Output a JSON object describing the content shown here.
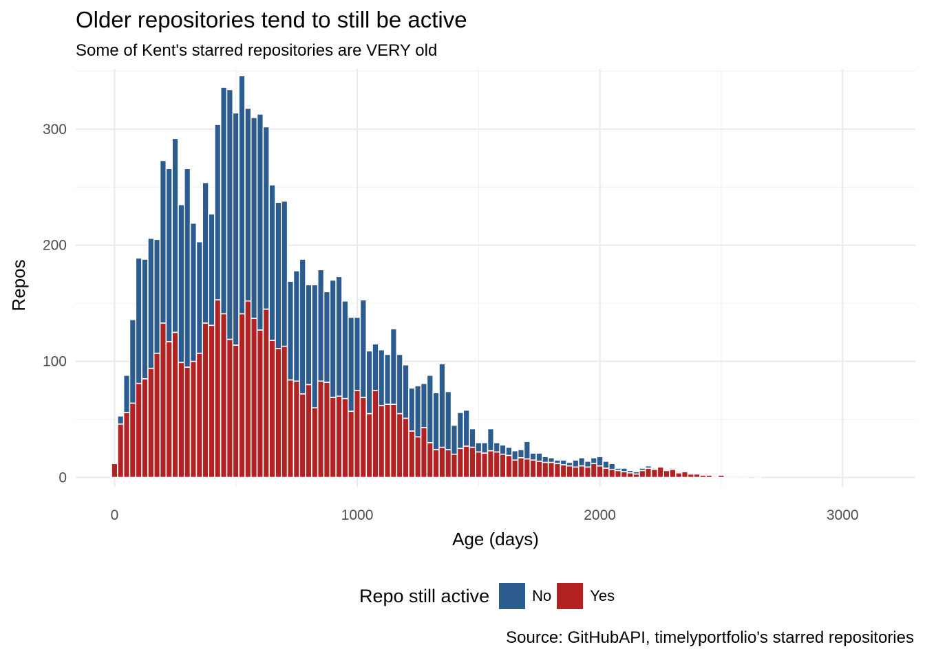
{
  "chart_data": {
    "type": "bar",
    "stacked": true,
    "title": "Older repositories tend to still be active",
    "subtitle": "Some of Kent's starred repositories are VERY old",
    "xlabel": "Age (days)",
    "ylabel": "Repos",
    "caption": "Source: GitHubAPI, timelyportfolio's starred repositories",
    "xlim": [
      -160,
      3300
    ],
    "ylim": [
      -8,
      352
    ],
    "x_ticks": [
      0,
      1000,
      2000,
      3000
    ],
    "x_tick_labels": [
      "0",
      "1000",
      "2000",
      "3000"
    ],
    "y_ticks": [
      0,
      100,
      200,
      300
    ],
    "y_tick_labels": [
      "0",
      "100",
      "200",
      "300"
    ],
    "grid": true,
    "legend": {
      "title": "Repo still active",
      "position": "bottom"
    },
    "bin_width": 25,
    "x": [
      0,
      25,
      50,
      75,
      100,
      125,
      150,
      175,
      200,
      225,
      250,
      275,
      300,
      325,
      350,
      375,
      400,
      425,
      450,
      475,
      500,
      525,
      550,
      575,
      600,
      625,
      650,
      675,
      700,
      725,
      750,
      775,
      800,
      825,
      850,
      875,
      900,
      925,
      950,
      975,
      1000,
      1025,
      1050,
      1075,
      1100,
      1125,
      1150,
      1175,
      1200,
      1225,
      1250,
      1275,
      1300,
      1325,
      1350,
      1375,
      1400,
      1425,
      1450,
      1475,
      1500,
      1525,
      1550,
      1575,
      1600,
      1625,
      1650,
      1675,
      1700,
      1725,
      1750,
      1775,
      1800,
      1825,
      1850,
      1875,
      1900,
      1925,
      1950,
      1975,
      2000,
      2025,
      2050,
      2075,
      2100,
      2125,
      2150,
      2175,
      2200,
      2225,
      2250,
      2275,
      2300,
      2325,
      2350,
      2375,
      2400,
      2425,
      2450,
      2475,
      2500,
      2525,
      2550,
      2575,
      2600,
      2625,
      2650,
      2675,
      2700,
      2725,
      2750,
      2775,
      2800,
      2825,
      2850,
      2875,
      2900,
      2925,
      2950,
      2975,
      3000,
      3025,
      3050,
      3075,
      3100,
      3125,
      3150,
      3175,
      3200,
      3225,
      3250
    ],
    "series": [
      {
        "name": "No",
        "color": "#2b5b8f",
        "values": [
          0,
          7,
          32,
          72,
          108,
          103,
          112,
          98,
          140,
          149,
          167,
          136,
          171,
          119,
          96,
          121,
          96,
          151,
          195,
          215,
          200,
          205,
          166,
          173,
          186,
          157,
          134,
          126,
          125,
          85,
          95,
          116,
          86,
          106,
          96,
          78,
          101,
          103,
          84,
          81,
          63,
          84,
          54,
          40,
          48,
          43,
          65,
          51,
          46,
          37,
          44,
          38,
          58,
          49,
          72,
          50,
          25,
          31,
          31,
          16,
          8,
          9,
          19,
          8,
          8,
          7,
          8,
          7,
          15,
          6,
          7,
          5,
          4,
          3,
          4,
          3,
          6,
          7,
          5,
          5,
          8,
          6,
          5,
          2,
          3,
          2,
          2,
          2,
          2,
          1,
          1,
          1,
          1,
          1,
          0,
          1,
          0,
          0,
          0,
          0,
          0,
          0,
          0,
          0,
          0,
          0,
          0,
          0,
          0,
          0,
          0,
          0,
          0,
          0,
          0,
          0,
          0,
          0,
          0,
          0,
          0,
          0,
          0,
          0,
          0,
          0,
          0,
          0,
          0,
          0,
          0
        ]
      },
      {
        "name": "Yes",
        "color": "#b22222",
        "values": [
          12,
          46,
          56,
          64,
          81,
          85,
          94,
          107,
          133,
          117,
          125,
          99,
          95,
          100,
          107,
          133,
          131,
          153,
          141,
          119,
          114,
          141,
          152,
          137,
          127,
          145,
          118,
          111,
          113,
          84,
          83,
          72,
          80,
          60,
          83,
          82,
          69,
          70,
          68,
          57,
          75,
          69,
          55,
          75,
          62,
          63,
          63,
          55,
          51,
          40,
          35,
          43,
          30,
          24,
          26,
          24,
          20,
          25,
          27,
          26,
          22,
          21,
          23,
          22,
          20,
          19,
          15,
          17,
          16,
          15,
          14,
          13,
          13,
          12,
          11,
          10,
          9,
          10,
          9,
          12,
          10,
          8,
          7,
          6,
          5,
          4,
          3,
          6,
          8,
          7,
          9,
          6,
          7,
          4,
          5,
          3,
          3,
          2,
          2,
          1,
          2,
          1,
          1,
          1,
          1,
          0,
          1,
          0,
          0,
          0,
          0,
          0,
          0,
          0,
          0,
          0,
          0,
          0,
          0,
          0,
          0,
          0,
          0,
          0,
          0,
          0,
          0,
          0,
          0,
          0,
          0
        ]
      }
    ]
  }
}
